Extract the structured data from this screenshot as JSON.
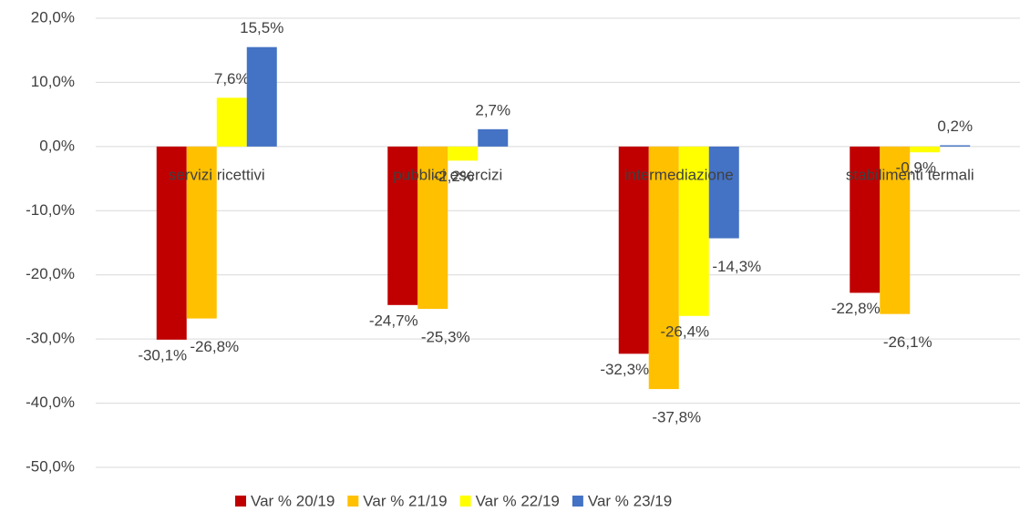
{
  "chart_data": {
    "type": "bar",
    "categories": [
      "servizi ricettivi",
      "pubblici esercizi",
      "intermediazione",
      "stabilimenti termali"
    ],
    "series": [
      {
        "name": "Var % 20/19",
        "color": "#c00000",
        "values": [
          -30.1,
          -24.7,
          -32.3,
          -22.8
        ],
        "value_labels": [
          "-30,1%",
          "-24,7%",
          "-32,3%",
          "-22,8%"
        ]
      },
      {
        "name": "Var % 21/19",
        "color": "#ffc000",
        "values": [
          -26.8,
          -25.3,
          -37.8,
          -26.1
        ],
        "value_labels": [
          "-26,8%",
          "-25,3%",
          "-37,8%",
          "-26,1%"
        ]
      },
      {
        "name": "Var % 22/19",
        "color": "#ffff00",
        "values": [
          7.6,
          -2.2,
          -26.4,
          -0.9
        ],
        "value_labels": [
          "7,6%",
          "-2,2%",
          "-26,4%",
          "-0,9%"
        ]
      },
      {
        "name": "Var % 23/19",
        "color": "#4472c4",
        "values": [
          15.5,
          2.7,
          -14.3,
          0.2
        ],
        "value_labels": [
          "15,5%",
          "2,7%",
          "-14,3%",
          "0,2%"
        ]
      }
    ],
    "ylim": [
      -50,
      20
    ],
    "yticks": [
      {
        "value": -50,
        "label": "-50,0%"
      },
      {
        "value": -40,
        "label": "-40,0%"
      },
      {
        "value": -30,
        "label": "-30,0%"
      },
      {
        "value": -20,
        "label": "-20,0%"
      },
      {
        "value": -10,
        "label": "-10,0%"
      },
      {
        "value": 0,
        "label": "0,0%"
      },
      {
        "value": 10,
        "label": "10,0%"
      },
      {
        "value": 20,
        "label": "20,0%"
      }
    ],
    "grid": true,
    "legend": "bottom"
  }
}
